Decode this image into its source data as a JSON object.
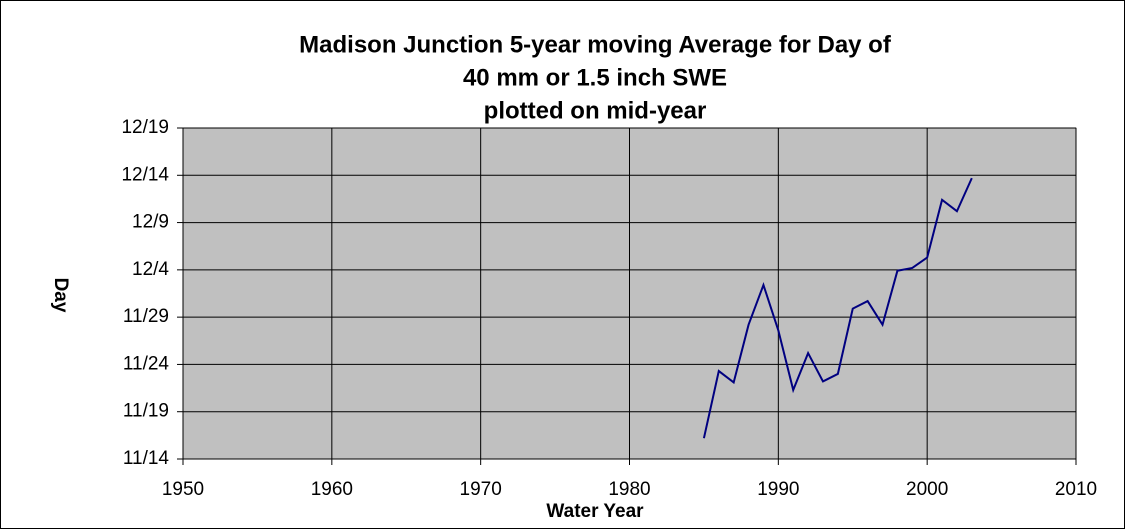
{
  "chart_data": {
    "type": "line",
    "title": [
      "Madison Junction 5-year moving Average for Day of",
      "40 mm or 1.5 inch SWE",
      "plotted on mid-year"
    ],
    "x_label": "Water Year",
    "y_label": "Day",
    "x": [
      1985,
      1986,
      1987,
      1988,
      1989,
      1990,
      1991,
      1992,
      1993,
      1994,
      1995,
      1996,
      1997,
      1998,
      1999,
      2000,
      2001,
      2002,
      2003
    ],
    "series": [
      {
        "name": "Day",
        "color": "#000080",
        "values": [
          16.2,
          23.3,
          22.1,
          28.2,
          32.4,
          27.6,
          21.3,
          25.2,
          22.2,
          23.0,
          29.9,
          30.7,
          28.2,
          33.9,
          34.2,
          35.3,
          41.4,
          40.2,
          43.7
        ]
      }
    ],
    "xlim": [
      1950,
      2010
    ],
    "xticks": [
      1950,
      1960,
      1970,
      1980,
      1990,
      2000,
      2010
    ],
    "ylim": [
      14,
      49
    ],
    "yticks": [
      {
        "value": 14,
        "label": "11/14"
      },
      {
        "value": 19,
        "label": "11/19"
      },
      {
        "value": 24,
        "label": "11/24"
      },
      {
        "value": 29,
        "label": "11/29"
      },
      {
        "value": 34,
        "label": "12/4"
      },
      {
        "value": 39,
        "label": "12/9"
      },
      {
        "value": 44,
        "label": "12/14"
      },
      {
        "value": 49,
        "label": "12/19"
      }
    ],
    "grid": true,
    "plot_background": "#c0c0c0"
  }
}
